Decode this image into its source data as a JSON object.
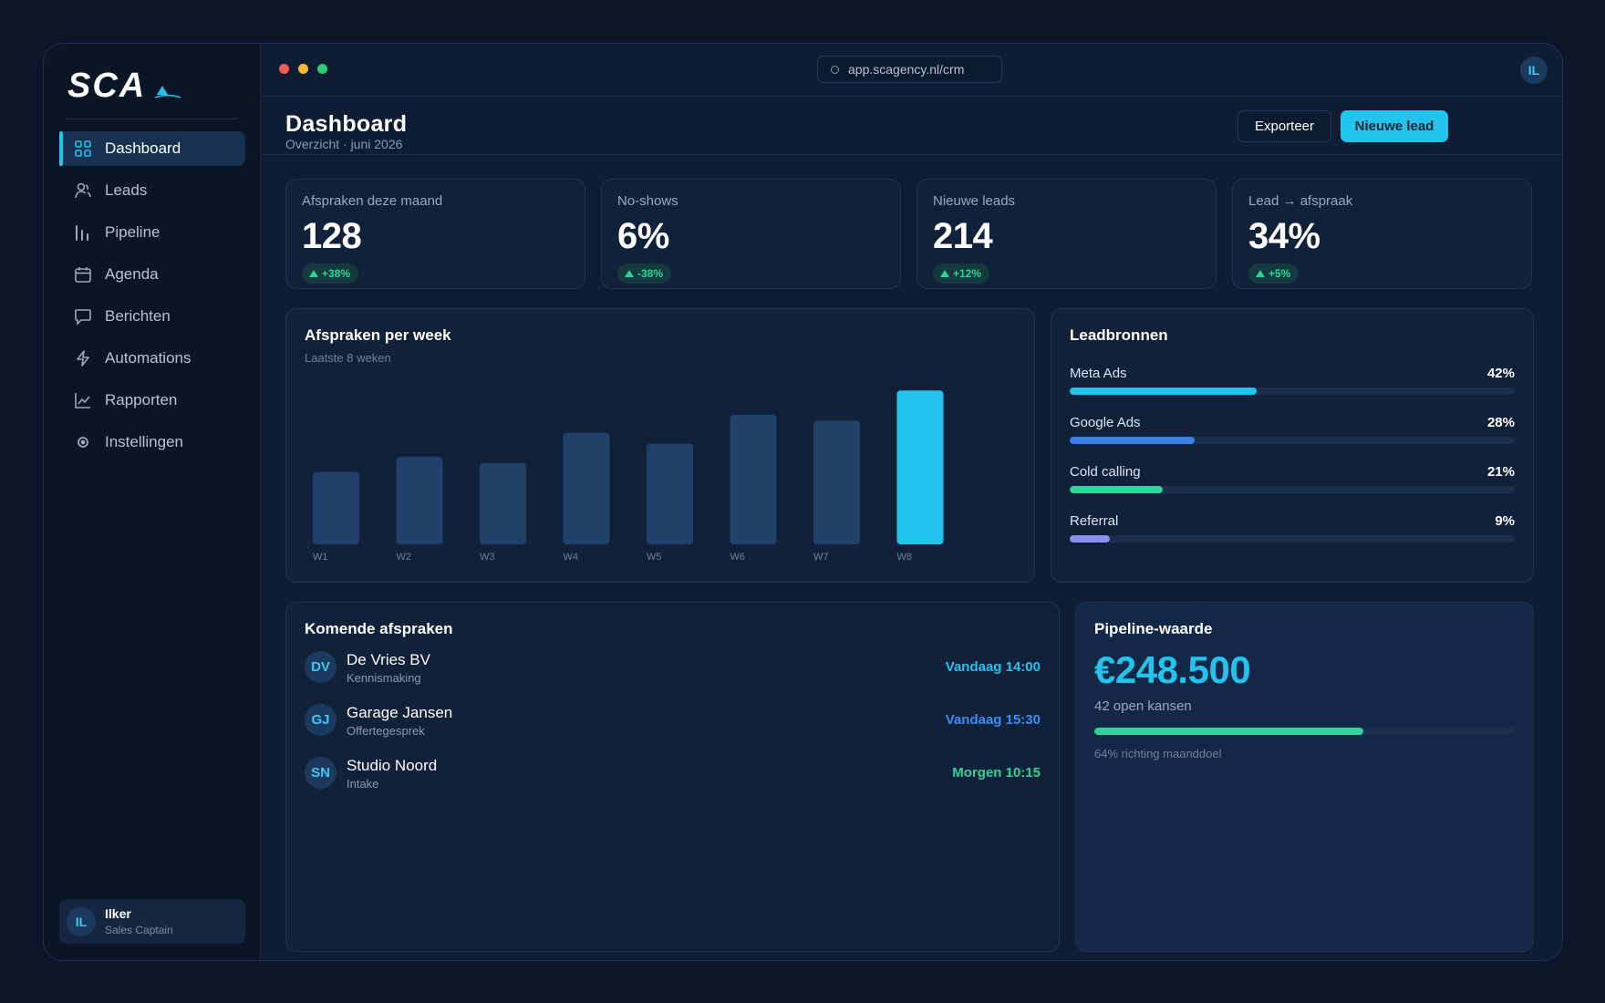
{
  "brand": {
    "logo_text": "SCA"
  },
  "sidebar": {
    "items": [
      {
        "label": "Dashboard",
        "icon": "grid-icon",
        "active": true
      },
      {
        "label": "Leads",
        "icon": "users-icon"
      },
      {
        "label": "Pipeline",
        "icon": "bars-icon"
      },
      {
        "label": "Agenda",
        "icon": "calendar-icon"
      },
      {
        "label": "Berichten",
        "icon": "message-icon"
      },
      {
        "label": "Automations",
        "icon": "bolt-icon"
      },
      {
        "label": "Rapporten",
        "icon": "line-chart-icon"
      },
      {
        "label": "Instellingen",
        "icon": "settings-icon"
      }
    ],
    "user": {
      "initials": "IL",
      "name": "Ilker",
      "role": "Sales Captain"
    }
  },
  "topbar": {
    "url": "app.scagency.nl/crm",
    "avatar_initials": "IL",
    "dot_colors": [
      "#ef5b57",
      "#f2b93b",
      "#2ecc71"
    ]
  },
  "header": {
    "title": "Dashboard",
    "subtitle": "Overzicht · juni 2026",
    "export_label": "Exporteer",
    "new_lead_label": "Nieuwe lead"
  },
  "stats": [
    {
      "label": "Afspraken deze maand",
      "value": "128",
      "change": "+38%"
    },
    {
      "label": "No-shows",
      "value": "6%",
      "change": "-38%"
    },
    {
      "label": "Nieuwe leads",
      "value": "214",
      "change": "+12%"
    },
    {
      "label": "Lead → afspraak",
      "value": "34%",
      "change": "+5%"
    }
  ],
  "weekly_chart": {
    "title": "Afspraken per week",
    "subtitle": "Laatste 8 weken"
  },
  "chart_data": {
    "type": "bar",
    "categories": [
      "W1",
      "W2",
      "W3",
      "W4",
      "W5",
      "W6",
      "W7",
      "W8"
    ],
    "values": [
      12,
      14.5,
      13.5,
      18.5,
      16.7,
      21.5,
      20.5,
      25.5
    ],
    "highlight_index": 7,
    "colors": {
      "bar": "#21416b",
      "highlight": "#22c4ee"
    },
    "title": "Afspraken per week",
    "subtitle": "Laatste 8 weken",
    "ylim": [
      0,
      26
    ]
  },
  "lead_sources": {
    "title": "Leadbronnen",
    "items": [
      {
        "label": "Meta Ads",
        "percent_text": "42%",
        "value": 42,
        "color": "#22c4ee"
      },
      {
        "label": "Google Ads",
        "percent_text": "28%",
        "value": 28,
        "color": "#3b7fe8"
      },
      {
        "label": "Cold calling",
        "percent_text": "21%",
        "value": 21,
        "color": "#2fd39a"
      },
      {
        "label": "Referral",
        "percent_text": "9%",
        "value": 9,
        "color": "#8b8ff0"
      }
    ]
  },
  "appointments": {
    "title": "Komende afspraken",
    "items": [
      {
        "initials": "DV",
        "name": "De Vries BV",
        "type": "Kennismaking",
        "time": "Vandaag 14:00",
        "time_color": "#22c4ee"
      },
      {
        "initials": "GJ",
        "name": "Garage Jansen",
        "type": "Offertegesprek",
        "time": "Vandaag 15:30",
        "time_color": "#3b8ef0"
      },
      {
        "initials": "SN",
        "name": "Studio Noord",
        "type": "Intake",
        "time": "Morgen 10:15",
        "time_color": "#2fd39a"
      }
    ]
  },
  "pipeline_value": {
    "title": "Pipeline-waarde",
    "value": "€248.500",
    "subtitle": "42 open kansen",
    "progress": 64,
    "note": "64% richting maanddoel"
  }
}
